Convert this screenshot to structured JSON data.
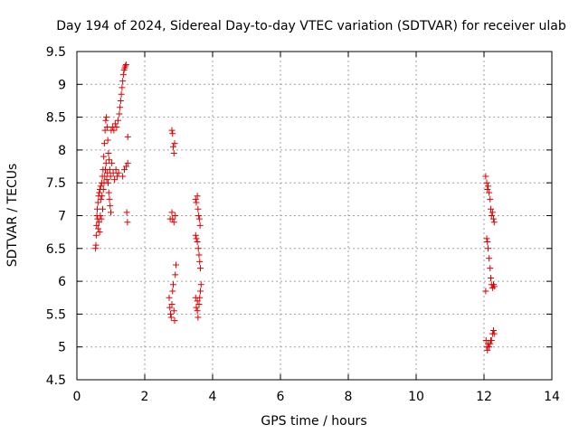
{
  "chart_data": {
    "type": "scatter",
    "title": "Day 194 of 2024, Sidereal Day-to-day VTEC variation (SDTVAR) for receiver ulab",
    "xlabel": "GPS time / hours",
    "ylabel": "SDTVAR / TECUs",
    "xlim": [
      0,
      14
    ],
    "ylim": [
      4.5,
      9.5
    ],
    "xticks": [
      "0",
      "2",
      "4",
      "6",
      "8",
      "10",
      "12",
      "14"
    ],
    "yticks": [
      "4.5",
      "5",
      "5.5",
      "6",
      "6.5",
      "7",
      "7.5",
      "8",
      "8.5",
      "9",
      "9.5"
    ],
    "grid": true,
    "marker": "+",
    "series": [
      {
        "name": "SDTVAR",
        "color": "#e00000",
        "points": [
          [
            0.55,
            6.5
          ],
          [
            0.56,
            6.55
          ],
          [
            0.57,
            6.7
          ],
          [
            0.58,
            6.85
          ],
          [
            0.59,
            7.0
          ],
          [
            0.6,
            7.1
          ],
          [
            0.61,
            6.95
          ],
          [
            0.62,
            7.2
          ],
          [
            0.63,
            6.8
          ],
          [
            0.64,
            7.3
          ],
          [
            0.65,
            6.9
          ],
          [
            0.66,
            7.35
          ],
          [
            0.67,
            6.75
          ],
          [
            0.68,
            7.4
          ],
          [
            0.69,
            7.0
          ],
          [
            0.7,
            7.45
          ],
          [
            0.71,
            7.25
          ],
          [
            0.72,
            6.95
          ],
          [
            0.73,
            7.5
          ],
          [
            0.74,
            7.3
          ],
          [
            0.75,
            7.6
          ],
          [
            0.76,
            7.1
          ],
          [
            0.77,
            7.7
          ],
          [
            0.78,
            7.4
          ],
          [
            0.79,
            7.9
          ],
          [
            0.8,
            7.5
          ],
          [
            0.81,
            8.1
          ],
          [
            0.82,
            7.6
          ],
          [
            0.83,
            8.3
          ],
          [
            0.84,
            7.7
          ],
          [
            0.85,
            8.45
          ],
          [
            0.86,
            7.8
          ],
          [
            0.87,
            8.5
          ],
          [
            0.88,
            7.55
          ],
          [
            0.89,
            8.35
          ],
          [
            0.9,
            7.65
          ],
          [
            0.91,
            8.15
          ],
          [
            0.92,
            7.5
          ],
          [
            0.93,
            7.95
          ],
          [
            0.94,
            7.35
          ],
          [
            0.95,
            7.85
          ],
          [
            0.96,
            7.25
          ],
          [
            0.97,
            7.7
          ],
          [
            0.98,
            7.15
          ],
          [
            0.99,
            7.6
          ],
          [
            1.0,
            7.05
          ],
          [
            1.01,
            8.3
          ],
          [
            1.03,
            7.8
          ],
          [
            1.05,
            8.35
          ],
          [
            1.07,
            7.65
          ],
          [
            1.09,
            8.3
          ],
          [
            1.11,
            7.55
          ],
          [
            1.13,
            8.4
          ],
          [
            1.15,
            7.7
          ],
          [
            1.17,
            8.35
          ],
          [
            1.19,
            7.6
          ],
          [
            1.21,
            8.45
          ],
          [
            1.23,
            7.65
          ],
          [
            1.25,
            8.55
          ],
          [
            1.27,
            8.65
          ],
          [
            1.29,
            8.75
          ],
          [
            1.31,
            8.85
          ],
          [
            1.33,
            8.95
          ],
          [
            1.35,
            9.05
          ],
          [
            1.37,
            9.15
          ],
          [
            1.39,
            9.22
          ],
          [
            1.41,
            9.25
          ],
          [
            1.43,
            9.28
          ],
          [
            1.45,
            9.3
          ],
          [
            1.35,
            7.6
          ],
          [
            1.4,
            7.7
          ],
          [
            1.45,
            7.75
          ],
          [
            1.5,
            7.8
          ],
          [
            1.47,
            7.05
          ],
          [
            1.49,
            6.9
          ],
          [
            1.5,
            8.2
          ],
          [
            2.72,
            5.75
          ],
          [
            2.74,
            5.6
          ],
          [
            2.76,
            5.5
          ],
          [
            2.78,
            5.45
          ],
          [
            2.8,
            5.65
          ],
          [
            2.82,
            5.85
          ],
          [
            2.84,
            5.95
          ],
          [
            2.86,
            5.55
          ],
          [
            2.88,
            5.4
          ],
          [
            2.9,
            6.1
          ],
          [
            2.92,
            6.25
          ],
          [
            2.8,
            8.3
          ],
          [
            2.82,
            8.25
          ],
          [
            2.84,
            8.05
          ],
          [
            2.86,
            7.95
          ],
          [
            2.88,
            8.1
          ],
          [
            2.8,
            7.05
          ],
          [
            2.82,
            6.95
          ],
          [
            2.86,
            6.9
          ],
          [
            2.9,
            7.0
          ],
          [
            2.75,
            6.95
          ],
          [
            3.5,
            7.25
          ],
          [
            3.52,
            7.2
          ],
          [
            3.55,
            7.3
          ],
          [
            3.57,
            7.1
          ],
          [
            3.59,
            7.0
          ],
          [
            3.61,
            6.95
          ],
          [
            3.63,
            6.85
          ],
          [
            3.5,
            6.7
          ],
          [
            3.52,
            6.65
          ],
          [
            3.55,
            6.6
          ],
          [
            3.58,
            6.5
          ],
          [
            3.6,
            6.4
          ],
          [
            3.62,
            6.3
          ],
          [
            3.64,
            6.2
          ],
          [
            3.5,
            5.75
          ],
          [
            3.52,
            5.6
          ],
          [
            3.55,
            5.55
          ],
          [
            3.57,
            5.45
          ],
          [
            3.6,
            5.65
          ],
          [
            3.62,
            5.75
          ],
          [
            3.64,
            5.85
          ],
          [
            3.66,
            5.95
          ],
          [
            3.55,
            5.7
          ],
          [
            12.05,
            7.6
          ],
          [
            12.08,
            7.5
          ],
          [
            12.1,
            7.4
          ],
          [
            12.12,
            7.45
          ],
          [
            12.15,
            7.35
          ],
          [
            12.18,
            7.25
          ],
          [
            12.2,
            7.1
          ],
          [
            12.22,
            7.0
          ],
          [
            12.25,
            7.05
          ],
          [
            12.28,
            6.95
          ],
          [
            12.3,
            6.9
          ],
          [
            12.08,
            6.65
          ],
          [
            12.1,
            6.6
          ],
          [
            12.12,
            6.5
          ],
          [
            12.15,
            6.35
          ],
          [
            12.18,
            6.2
          ],
          [
            12.2,
            6.05
          ],
          [
            12.22,
            5.95
          ],
          [
            12.25,
            5.9
          ],
          [
            12.28,
            5.95
          ],
          [
            12.3,
            5.92
          ],
          [
            12.05,
            5.85
          ],
          [
            12.06,
            5.1
          ],
          [
            12.08,
            5.0
          ],
          [
            12.1,
            4.95
          ],
          [
            12.12,
            5.05
          ],
          [
            12.15,
            5.0
          ],
          [
            12.18,
            5.05
          ],
          [
            12.2,
            5.1
          ],
          [
            12.22,
            5.1
          ],
          [
            12.25,
            5.2
          ],
          [
            12.28,
            5.25
          ],
          [
            12.3,
            5.2
          ]
        ]
      }
    ]
  }
}
